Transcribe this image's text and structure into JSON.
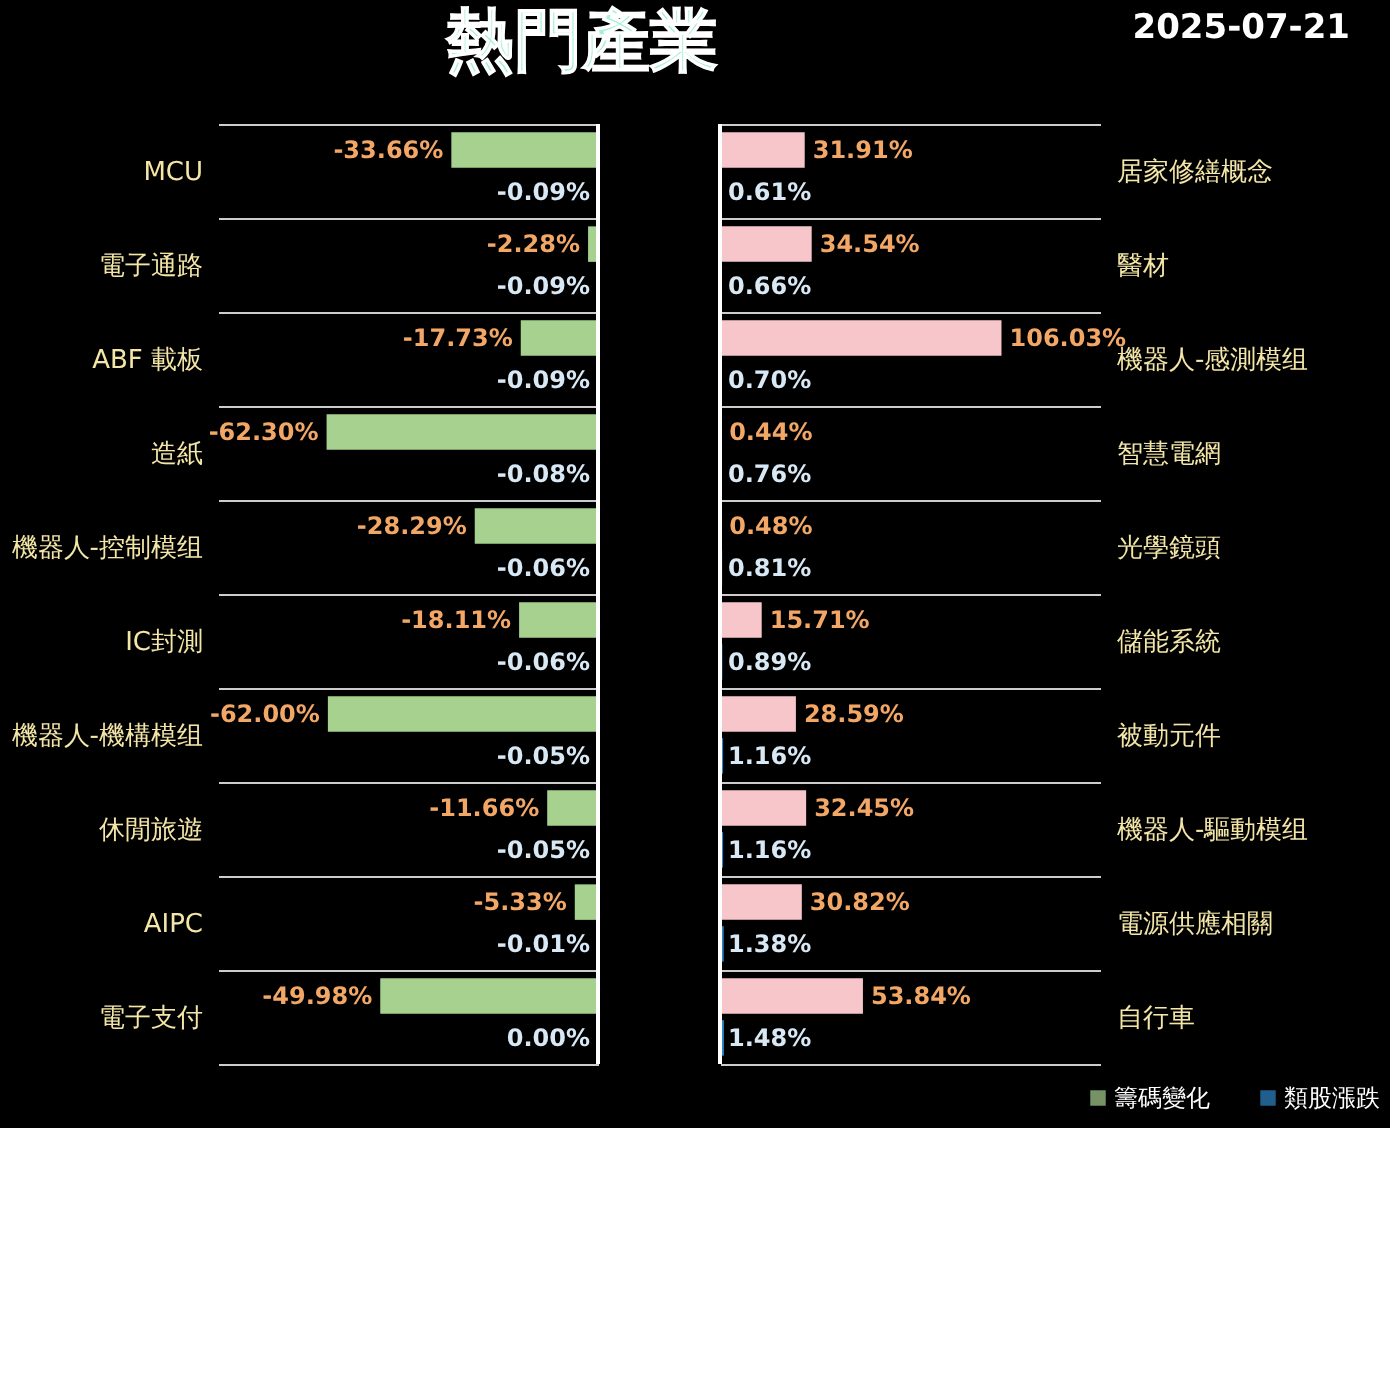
{
  "chart_data": [
    {
      "type": "bar",
      "orientation": "horizontal",
      "title": "熱門產業",
      "categories": [
        "MCU",
        "電子通路",
        "ABF 載板",
        "造紙",
        "機器人-控制模组",
        "IC封測",
        "機器人-機構模组",
        "休閒旅遊",
        "AIPC",
        "電子支付"
      ],
      "grid": "y",
      "legend": "bottom right",
      "series": [
        {
          "name": "籌碼變化",
          "color": "#a6d18e",
          "values": [
            -33.66,
            -2.28,
            -17.73,
            -62.3,
            -28.29,
            -18.11,
            -62.0,
            -11.66,
            -5.33,
            -49.98
          ],
          "value_labels": [
            "-33.66%",
            "-2.28%",
            "-17.73%",
            "-62.30%",
            "-28.29%",
            "-18.11%",
            "-62.00%",
            "-11.66%",
            "-5.33%",
            "-49.98%"
          ]
        },
        {
          "name": "類股漲跌",
          "color": "#2e86c8",
          "values": [
            -0.09,
            -0.09,
            -0.09,
            -0.08,
            -0.06,
            -0.06,
            -0.05,
            -0.05,
            -0.01,
            0.0
          ],
          "value_labels": [
            "-0.09%",
            "-0.09%",
            "-0.09%",
            "-0.08%",
            "-0.06%",
            "-0.06%",
            "-0.05%",
            "-0.05%",
            "-0.01%",
            "0.00%"
          ]
        }
      ]
    },
    {
      "type": "bar",
      "orientation": "horizontal",
      "subtitle": "2025-07-21",
      "categories": [
        "居家修繕概念",
        "醫材",
        "機器人-感測模组",
        "智慧電網",
        "光學鏡頭",
        "儲能系統",
        "被動元件",
        "機器人-驅動模组",
        "電源供應相關",
        "自行車"
      ],
      "grid": "y",
      "series": [
        {
          "color": "#f7c6cb",
          "values": [
            31.91,
            34.54,
            106.03,
            0.44,
            0.48,
            15.71,
            28.59,
            32.45,
            30.82,
            53.84
          ],
          "value_labels": [
            "31.91%",
            "34.54%",
            "106.03%",
            "0.44%",
            "0.48%",
            "15.71%",
            "28.59%",
            "32.45%",
            "30.82%",
            "53.84%"
          ]
        },
        {
          "color": "#2e86c8",
          "values": [
            0.61,
            0.66,
            0.7,
            0.76,
            0.81,
            0.89,
            1.16,
            1.16,
            1.38,
            1.48
          ],
          "value_labels": [
            "0.61%",
            "0.66%",
            "0.70%",
            "0.76%",
            "0.81%",
            "0.89%",
            "1.16%",
            "1.16%",
            "1.38%",
            "1.48%"
          ]
        }
      ]
    }
  ]
}
